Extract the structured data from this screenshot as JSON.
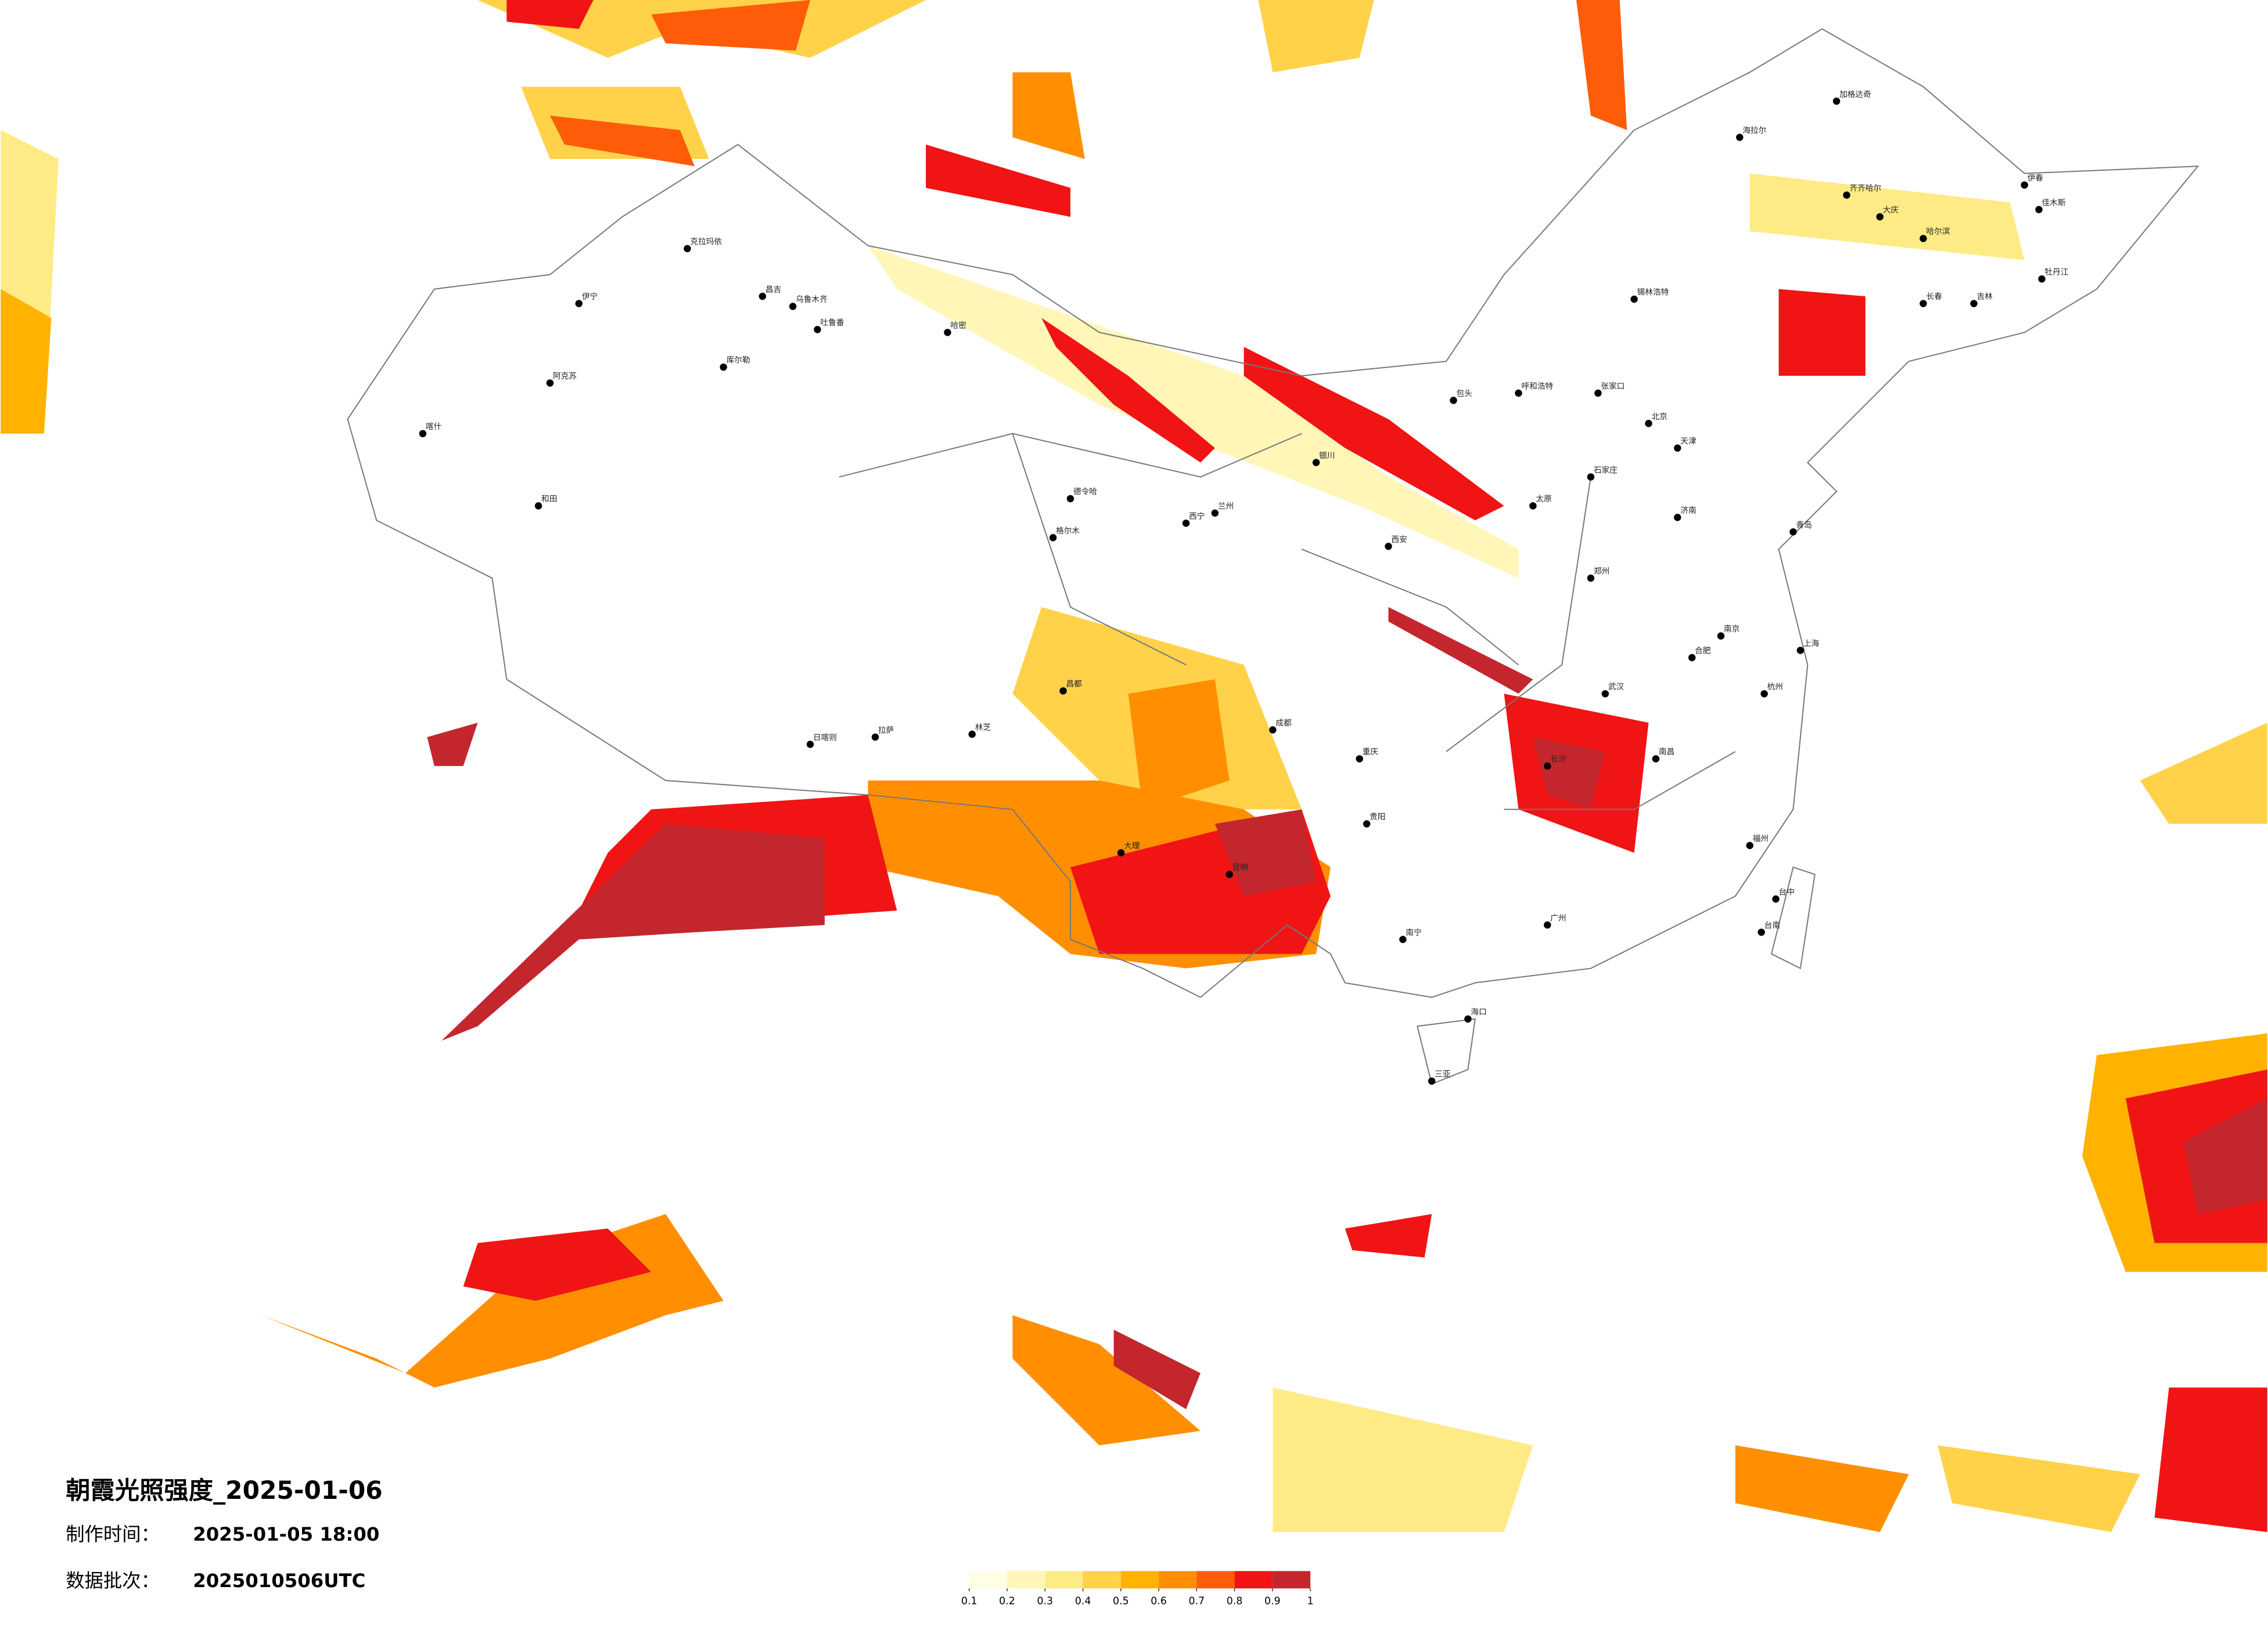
{
  "title": "朝霞光照强度_2025-01-06",
  "made_time": {
    "label": "制作时间：",
    "value": "2025-01-05 18:00"
  },
  "batch": {
    "label": "数据批次：",
    "value": "2025010506UTC"
  },
  "legend": {
    "ticks": [
      0.1,
      0.2,
      0.3,
      0.4,
      0.5,
      0.6,
      0.7,
      0.8,
      0.9,
      1
    ],
    "colors": [
      "#fffde6",
      "#fff6b8",
      "#ffeb85",
      "#ffd24a",
      "#ffb300",
      "#ff8f00",
      "#ff5c0a",
      "#f01414",
      "#c4262e"
    ]
  },
  "cities": [
    "克拉玛依",
    "伊宁",
    "昌吉",
    "乌鲁木齐",
    "吐鲁番",
    "哈密",
    "库尔勒",
    "阿克苏",
    "和田",
    "喀什",
    "德令哈",
    "格尔木",
    "日喀则",
    "拉萨",
    "林芝",
    "昌都",
    "海拉尔",
    "加格达奇",
    "齐齐哈尔",
    "大庆",
    "哈尔滨",
    "伊春",
    "佳木斯",
    "牡丹江",
    "长春",
    "吉林",
    "锡林浩特",
    "呼和浩特",
    "包头",
    "张家口",
    "北京",
    "天津",
    "石家庄",
    "太原",
    "济南",
    "青岛",
    "郑州",
    "西安",
    "兰州",
    "西宁",
    "银川",
    "成都",
    "重庆",
    "贵阳",
    "昆明",
    "南宁",
    "广州",
    "长沙",
    "武汉",
    "南京",
    "上海",
    "杭州",
    "合肥",
    "南昌",
    "福州",
    "台中",
    "台南",
    "海口",
    "三亚",
    "大理"
  ]
}
